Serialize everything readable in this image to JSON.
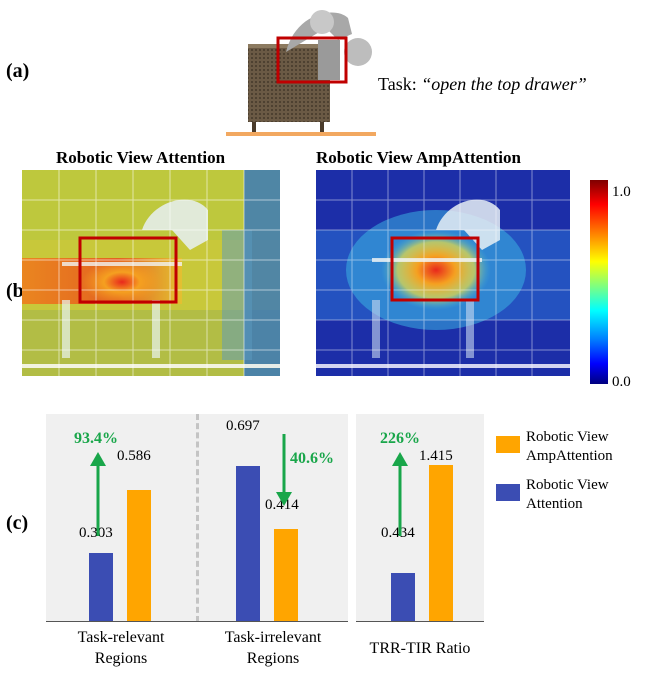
{
  "labels": {
    "a": "(a)",
    "b": "(b)",
    "c": "(c)"
  },
  "task": {
    "prefix": "Task: ",
    "instruction": "“open the top drawer”"
  },
  "heatmaps": {
    "left_title": "Robotic View Attention",
    "right_title": "Robotic View AmpAttention"
  },
  "colorbar": {
    "max_label": "1.0",
    "min_label": "0.0"
  },
  "colors": {
    "attention": "#3b4db3",
    "ampattention": "#ffa500",
    "highlight": "#19a64a",
    "box": "#c00000",
    "panel_bg": "#f0f0f0"
  },
  "chart_data": {
    "type": "bar",
    "legend_placement": "right",
    "series": [
      {
        "name": "Robotic View AmpAttention",
        "color": "#ffa500"
      },
      {
        "name": "Robotic View Attention",
        "color": "#3b4db3"
      }
    ],
    "groups": [
      {
        "label_line1": "Task-relevant",
        "label_line2": "Regions",
        "attention": 0.303,
        "ampattention": 0.586,
        "attention_label": "0.303",
        "ampattention_label": "0.586",
        "change": "93.4%",
        "direction": "up"
      },
      {
        "label_line1": "Task-irrelevant",
        "label_line2": "Regions",
        "attention": 0.697,
        "ampattention": 0.414,
        "attention_label": "0.697",
        "ampattention_label": "0.414",
        "change": "40.6%",
        "direction": "down"
      },
      {
        "label_line1": "TRR-TIR Ratio",
        "label_line2": "",
        "attention": 0.434,
        "ampattention": 1.415,
        "attention_label": "0.434",
        "ampattention_label": "1.415",
        "change": "226%",
        "direction": "up"
      }
    ]
  }
}
